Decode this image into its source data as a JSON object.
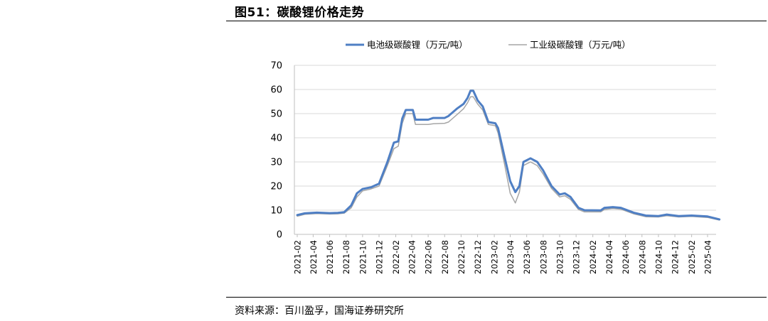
{
  "header": {
    "title": "图51：碳酸锂价格走势"
  },
  "footer": {
    "source": "资料来源：百川盈孚，国海证券研究所"
  },
  "colors": {
    "battery": "#4f7fc4",
    "industrial": "#a6a6a6",
    "grid": "#d9d9d9"
  },
  "chart_data": {
    "type": "line",
    "title": "",
    "xlabel": "",
    "ylabel": "",
    "ylim": [
      0,
      70
    ],
    "yticks": [
      0,
      10,
      20,
      30,
      40,
      50,
      60,
      70
    ],
    "grid": "horizontal",
    "legend_position": "top",
    "xticks": [
      "2021-02",
      "2021-04",
      "2021-06",
      "2021-08",
      "2021-10",
      "2021-12",
      "2022-02",
      "2022-04",
      "2022-06",
      "2022-08",
      "2022-10",
      "2022-12",
      "2023-02",
      "2023-04",
      "2023-06",
      "2023-08",
      "2023-10",
      "2023-12",
      "2024-02",
      "2024-04",
      "2024-06",
      "2024-08",
      "2024-10",
      "2024-12",
      "2025-02",
      "2025-04"
    ],
    "series": [
      {
        "name": "电池级碳酸锂（万元/吨）",
        "points": [
          [
            "2021-02-01",
            8.0
          ],
          [
            "2021-03-01",
            8.7
          ],
          [
            "2021-04-15",
            9.0
          ],
          [
            "2021-06-01",
            8.8
          ],
          [
            "2021-07-01",
            8.9
          ],
          [
            "2021-07-25",
            9.2
          ],
          [
            "2021-08-20",
            12.0
          ],
          [
            "2021-09-10",
            17.0
          ],
          [
            "2021-10-01",
            18.8
          ],
          [
            "2021-11-01",
            19.5
          ],
          [
            "2021-12-01",
            21.0
          ],
          [
            "2022-01-01",
            30.0
          ],
          [
            "2022-01-25",
            38.0
          ],
          [
            "2022-02-10",
            38.5
          ],
          [
            "2022-02-25",
            48.0
          ],
          [
            "2022-03-10",
            51.5
          ],
          [
            "2022-04-05",
            51.5
          ],
          [
            "2022-04-15",
            47.5
          ],
          [
            "2022-06-01",
            47.5
          ],
          [
            "2022-06-20",
            48.2
          ],
          [
            "2022-08-01",
            48.2
          ],
          [
            "2022-08-15",
            49.0
          ],
          [
            "2022-09-15",
            52.0
          ],
          [
            "2022-10-10",
            54.0
          ],
          [
            "2022-10-25",
            56.5
          ],
          [
            "2022-11-05",
            59.5
          ],
          [
            "2022-11-15",
            59.5
          ],
          [
            "2022-12-01",
            55.5
          ],
          [
            "2022-12-20",
            53.0
          ],
          [
            "2023-01-10",
            46.5
          ],
          [
            "2023-02-05",
            46.0
          ],
          [
            "2023-02-15",
            44.0
          ],
          [
            "2023-03-10",
            32.5
          ],
          [
            "2023-04-01",
            22.0
          ],
          [
            "2023-04-20",
            17.5
          ],
          [
            "2023-05-05",
            20.0
          ],
          [
            "2023-05-20",
            30.0
          ],
          [
            "2023-06-15",
            31.5
          ],
          [
            "2023-07-10",
            30.0
          ],
          [
            "2023-08-01",
            26.5
          ],
          [
            "2023-09-01",
            20.0
          ],
          [
            "2023-10-01",
            16.5
          ],
          [
            "2023-10-20",
            17.0
          ],
          [
            "2023-11-10",
            15.5
          ],
          [
            "2023-12-10",
            11.0
          ],
          [
            "2024-01-01",
            10.0
          ],
          [
            "2024-03-01",
            9.9
          ],
          [
            "2024-03-15",
            11.0
          ],
          [
            "2024-04-15",
            11.3
          ],
          [
            "2024-05-15",
            11.0
          ],
          [
            "2024-07-01",
            9.0
          ],
          [
            "2024-08-15",
            7.8
          ],
          [
            "2024-10-01",
            7.6
          ],
          [
            "2024-11-01",
            8.2
          ],
          [
            "2024-12-15",
            7.6
          ],
          [
            "2025-02-01",
            7.8
          ],
          [
            "2025-04-01",
            7.4
          ],
          [
            "2025-05-15",
            6.2
          ]
        ]
      },
      {
        "name": "工业级碳酸锂（万元/吨）",
        "points": [
          [
            "2021-02-01",
            7.5
          ],
          [
            "2021-03-01",
            8.3
          ],
          [
            "2021-04-15",
            8.6
          ],
          [
            "2021-06-01",
            8.4
          ],
          [
            "2021-07-01",
            8.5
          ],
          [
            "2021-07-25",
            8.8
          ],
          [
            "2021-08-20",
            11.0
          ],
          [
            "2021-09-10",
            15.5
          ],
          [
            "2021-10-01",
            18.0
          ],
          [
            "2021-11-01",
            18.8
          ],
          [
            "2021-12-01",
            20.0
          ],
          [
            "2022-01-01",
            28.5
          ],
          [
            "2022-01-25",
            35.5
          ],
          [
            "2022-02-10",
            36.5
          ],
          [
            "2022-02-25",
            46.0
          ],
          [
            "2022-03-10",
            50.0
          ],
          [
            "2022-04-05",
            50.0
          ],
          [
            "2022-04-15",
            45.5
          ],
          [
            "2022-06-01",
            45.5
          ],
          [
            "2022-06-20",
            45.8
          ],
          [
            "2022-08-01",
            46.0
          ],
          [
            "2022-08-15",
            46.5
          ],
          [
            "2022-09-15",
            49.5
          ],
          [
            "2022-10-10",
            52.0
          ],
          [
            "2022-10-25",
            54.5
          ],
          [
            "2022-11-05",
            57.0
          ],
          [
            "2022-11-15",
            57.0
          ],
          [
            "2022-12-01",
            54.0
          ],
          [
            "2022-12-20",
            51.5
          ],
          [
            "2023-01-10",
            45.5
          ],
          [
            "2023-02-05",
            45.0
          ],
          [
            "2023-02-15",
            42.0
          ],
          [
            "2023-03-10",
            29.5
          ],
          [
            "2023-04-01",
            17.0
          ],
          [
            "2023-04-20",
            13.0
          ],
          [
            "2023-05-05",
            17.5
          ],
          [
            "2023-05-20",
            28.5
          ],
          [
            "2023-06-15",
            30.0
          ],
          [
            "2023-07-10",
            28.5
          ],
          [
            "2023-08-01",
            25.0
          ],
          [
            "2023-09-01",
            19.0
          ],
          [
            "2023-10-01",
            15.5
          ],
          [
            "2023-10-20",
            16.0
          ],
          [
            "2023-11-10",
            14.5
          ],
          [
            "2023-12-10",
            10.3
          ],
          [
            "2024-01-01",
            9.3
          ],
          [
            "2024-03-01",
            9.3
          ],
          [
            "2024-03-15",
            10.3
          ],
          [
            "2024-04-15",
            10.7
          ],
          [
            "2024-05-15",
            10.4
          ],
          [
            "2024-07-01",
            8.5
          ],
          [
            "2024-08-15",
            7.3
          ],
          [
            "2024-10-01",
            7.2
          ],
          [
            "2024-11-01",
            7.7
          ],
          [
            "2024-12-15",
            7.2
          ],
          [
            "2025-02-01",
            7.4
          ],
          [
            "2025-04-01",
            7.0
          ],
          [
            "2025-05-15",
            5.9
          ]
        ]
      }
    ]
  }
}
